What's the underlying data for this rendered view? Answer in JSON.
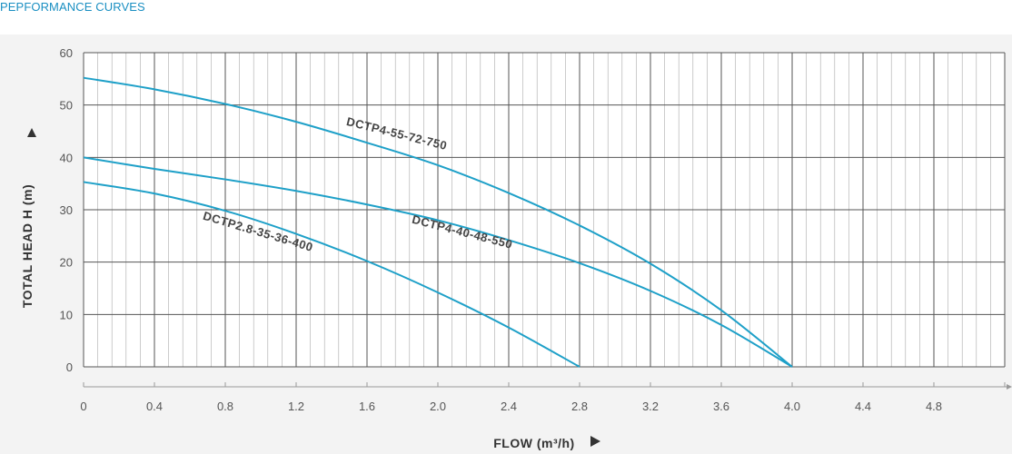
{
  "header": {
    "title": "PEPFORMANCE CURVES"
  },
  "colors": {
    "accent": "#1a8fc2",
    "curve": "#1ea0c8",
    "grid": "#555555",
    "minor_grid": "#aaaaaa"
  },
  "chart_data": {
    "type": "line",
    "title": "",
    "xlabel": "FLOW (m³/h)",
    "ylabel": "TOTAL HEAD H (m)",
    "xlim": [
      0,
      5.2
    ],
    "ylim": [
      0,
      60
    ],
    "x_ticks": [
      "0",
      "0.4",
      "0.8",
      "1.2",
      "1.6",
      "2.0",
      "2.4",
      "2.8",
      "3.2",
      "3.6",
      "4.0",
      "4.4",
      "4.8"
    ],
    "y_ticks": [
      "0",
      "10",
      "20",
      "30",
      "40",
      "50",
      "60"
    ],
    "grid": true,
    "series": [
      {
        "name": "DCTP4-55-72-750",
        "points": [
          [
            0,
            55.2
          ],
          [
            0.4,
            53
          ],
          [
            0.8,
            50.2
          ],
          [
            1.2,
            46.8
          ],
          [
            1.6,
            42.8
          ],
          [
            2.0,
            38.5
          ],
          [
            2.4,
            33.2
          ],
          [
            2.8,
            27
          ],
          [
            3.2,
            19.7
          ],
          [
            3.6,
            10.8
          ],
          [
            4.0,
            0
          ]
        ]
      },
      {
        "name": "DCTP4-40-48-550",
        "points": [
          [
            0,
            40
          ],
          [
            0.4,
            37.8
          ],
          [
            0.8,
            35.8
          ],
          [
            1.2,
            33.6
          ],
          [
            1.6,
            31
          ],
          [
            2.0,
            28
          ],
          [
            2.4,
            24.2
          ],
          [
            2.8,
            19.8
          ],
          [
            3.2,
            14.5
          ],
          [
            3.6,
            8
          ],
          [
            4.0,
            0
          ]
        ]
      },
      {
        "name": "DCTP2.8-35-36-400",
        "points": [
          [
            0,
            35.3
          ],
          [
            0.4,
            33.1
          ],
          [
            0.8,
            29.8
          ],
          [
            1.2,
            25.4
          ],
          [
            1.6,
            20.2
          ],
          [
            2.0,
            14.2
          ],
          [
            2.4,
            7.5
          ],
          [
            2.8,
            0
          ]
        ]
      }
    ]
  }
}
